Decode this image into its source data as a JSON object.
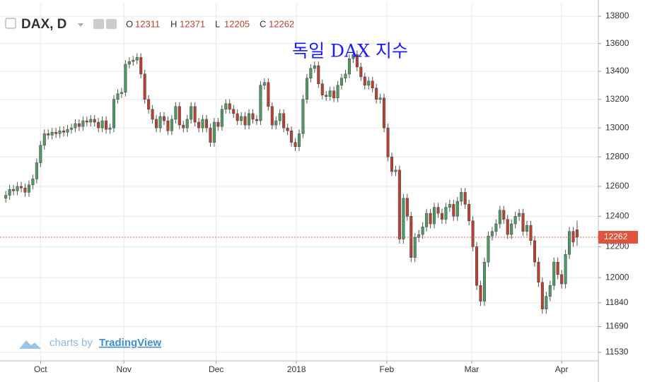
{
  "chart_data": {
    "type": "candlestick",
    "symbol": "DAX, D",
    "title": "독일 DAX 지수",
    "ohlc_labels": [
      "O",
      "H",
      "L",
      "C"
    ],
    "watermark": {
      "prefix": "charts by",
      "brand": "TradingView"
    },
    "log_scale": true,
    "grid": true,
    "up_color": "#4e9a63",
    "down_color": "#b9412f",
    "last_price_color": "#e0533f",
    "xlim": [
      -1.5,
      153.5
    ],
    "xticks": [
      {
        "value": 9,
        "label": "Oct"
      },
      {
        "value": 30.6,
        "label": "Nov"
      },
      {
        "value": 54.5,
        "label": "Dec"
      },
      {
        "value": 75.3,
        "label": "2018"
      },
      {
        "value": 98.7,
        "label": "Feb"
      },
      {
        "value": 120.7,
        "label": "Mar"
      },
      {
        "value": 144,
        "label": "Apr"
      }
    ],
    "ylim": [
      11478,
      13894
    ],
    "yticks": [
      11530,
      11690,
      11840,
      12000,
      12200,
      12400,
      12600,
      12800,
      13000,
      13200,
      13400,
      13600,
      13800
    ],
    "open": [
      12520,
      12540,
      12580,
      12570,
      12600,
      12590,
      12560,
      12610,
      12650,
      12760,
      12880,
      12960,
      12950,
      12970,
      12960,
      12980,
      12970,
      12990,
      13000,
      13030,
      13010,
      13050,
      13040,
      13060,
      13040,
      13000,
      13050,
      12990,
      13000,
      13200,
      13240,
      13250,
      13450,
      13470,
      13480,
      13500,
      13380,
      13200,
      13130,
      13060,
      13000,
      13080,
      13050,
      12980,
      13060,
      13150,
      13020,
      13000,
      13060,
      13150,
      13040,
      13000,
      13060,
      13000,
      12900,
      13040,
      13010,
      13130,
      13170,
      13130,
      13100,
      13050,
      13080,
      13020,
      13100,
      13060,
      13050,
      13300,
      13320,
      13150,
      13020,
      13050,
      13100,
      13000,
      12980,
      12900,
      12870,
      12960,
      13200,
      13350,
      13420,
      13440,
      13310,
      13230,
      13220,
      13260,
      13210,
      13300,
      13350,
      13380,
      13490,
      13520,
      13430,
      13360,
      13300,
      13330,
      13280,
      13200,
      13210,
      13000,
      12800,
      12700,
      12710,
      12250,
      12520,
      12400,
      12130,
      12260,
      12280,
      12330,
      12420,
      12350,
      12460,
      12420,
      12380,
      12460,
      12480,
      12400,
      12500,
      12560,
      12480,
      12370,
      12200,
      11950,
      11850,
      12100,
      12270,
      12300,
      12350,
      12440,
      12380,
      12280,
      12350,
      12400,
      12420,
      12300,
      12340,
      12240,
      12100,
      11970,
      11800,
      11880,
      11950,
      12100,
      12020,
      11960,
      12150,
      12300,
      12311
    ],
    "high": [
      12570,
      12610,
      12610,
      12630,
      12630,
      12620,
      12640,
      12680,
      12790,
      12910,
      12990,
      12990,
      13000,
      13000,
      13010,
      13010,
      13020,
      13030,
      13060,
      13060,
      13080,
      13080,
      13090,
      13090,
      13070,
      13080,
      13080,
      13030,
      13230,
      13270,
      13280,
      13480,
      13500,
      13510,
      13530,
      13530,
      13410,
      13230,
      13160,
      13090,
      13110,
      13110,
      13080,
      13090,
      13180,
      13180,
      13050,
      13090,
      13180,
      13180,
      13070,
      13090,
      13090,
      13030,
      13070,
      13070,
      13160,
      13200,
      13200,
      13160,
      13130,
      13110,
      13110,
      13130,
      13130,
      13090,
      13330,
      13350,
      13350,
      13180,
      13080,
      13130,
      13130,
      13030,
      13010,
      12930,
      12990,
      13230,
      13380,
      13450,
      13470,
      13470,
      13340,
      13260,
      13290,
      13290,
      13330,
      13380,
      13410,
      13520,
      13550,
      13550,
      13460,
      13390,
      13360,
      13360,
      13310,
      13240,
      13240,
      13030,
      12830,
      12740,
      12740,
      12550,
      12550,
      12430,
      12290,
      12310,
      12360,
      12450,
      12450,
      12490,
      12490,
      12450,
      12490,
      12510,
      12510,
      12530,
      12590,
      12590,
      12510,
      12400,
      12230,
      11980,
      12130,
      12300,
      12330,
      12380,
      12470,
      12470,
      12410,
      12380,
      12430,
      12450,
      12450,
      12370,
      12370,
      12270,
      12130,
      12000,
      11910,
      11980,
      12130,
      12130,
      12050,
      12180,
      12330,
      12330,
      12371
    ],
    "low": [
      12490,
      12510,
      12540,
      12540,
      12560,
      12530,
      12530,
      12580,
      12620,
      12730,
      12850,
      12920,
      12920,
      12930,
      12930,
      12940,
      12940,
      12960,
      12970,
      12980,
      12980,
      13010,
      13010,
      13010,
      12970,
      12970,
      12960,
      12960,
      12970,
      13170,
      13210,
      13220,
      13420,
      13440,
      13450,
      13350,
      13170,
      13100,
      13030,
      12970,
      12970,
      13020,
      12950,
      12950,
      13030,
      12990,
      12970,
      12970,
      13030,
      13010,
      12970,
      12970,
      12970,
      12870,
      12870,
      12980,
      12980,
      13100,
      13100,
      13070,
      13020,
      13020,
      12990,
      12990,
      13030,
      13020,
      13020,
      13270,
      13120,
      12990,
      12990,
      13020,
      12970,
      12950,
      12870,
      12840,
      12840,
      12930,
      13170,
      13320,
      13390,
      13280,
      13200,
      13190,
      13190,
      13180,
      13180,
      13270,
      13320,
      13350,
      13460,
      13400,
      13330,
      13270,
      13270,
      13250,
      13170,
      13170,
      12970,
      12770,
      12670,
      12670,
      12220,
      12220,
      12370,
      12100,
      12100,
      12230,
      12250,
      12300,
      12320,
      12320,
      12390,
      12350,
      12350,
      12430,
      12370,
      12370,
      12470,
      12450,
      12340,
      12170,
      11920,
      11820,
      11820,
      12070,
      12240,
      12270,
      12320,
      12350,
      12250,
      12250,
      12320,
      12370,
      12270,
      12270,
      12210,
      12070,
      11940,
      11770,
      11770,
      11850,
      11920,
      11990,
      11930,
      11930,
      12120,
      12200,
      12205
    ],
    "close": [
      12540,
      12580,
      12570,
      12600,
      12590,
      12560,
      12610,
      12650,
      12760,
      12880,
      12960,
      12950,
      12970,
      12960,
      12980,
      12970,
      12990,
      13000,
      13030,
      13010,
      13050,
      13040,
      13060,
      13040,
      13000,
      13050,
      12990,
      13000,
      13200,
      13240,
      13250,
      13450,
      13470,
      13480,
      13500,
      13380,
      13200,
      13130,
      13060,
      13000,
      13080,
      13050,
      12980,
      13060,
      13150,
      13020,
      13000,
      13060,
      13150,
      13040,
      13000,
      13060,
      13000,
      12900,
      13040,
      13010,
      13130,
      13170,
      13130,
      13100,
      13050,
      13080,
      13020,
      13100,
      13060,
      13050,
      13300,
      13320,
      13150,
      13020,
      13050,
      13100,
      13000,
      12980,
      12900,
      12870,
      12960,
      13200,
      13350,
      13420,
      13440,
      13310,
      13230,
      13220,
      13260,
      13210,
      13300,
      13350,
      13380,
      13490,
      13520,
      13430,
      13360,
      13300,
      13330,
      13280,
      13200,
      13210,
      13000,
      12800,
      12700,
      12710,
      12250,
      12520,
      12400,
      12130,
      12260,
      12280,
      12330,
      12420,
      12350,
      12460,
      12420,
      12380,
      12460,
      12480,
      12400,
      12500,
      12560,
      12480,
      12370,
      12200,
      11950,
      11850,
      12100,
      12270,
      12300,
      12350,
      12440,
      12380,
      12280,
      12350,
      12400,
      12420,
      12300,
      12340,
      12240,
      12100,
      11970,
      11800,
      11880,
      11950,
      12100,
      12020,
      11960,
      12150,
      12300,
      12230,
      12262
    ]
  }
}
